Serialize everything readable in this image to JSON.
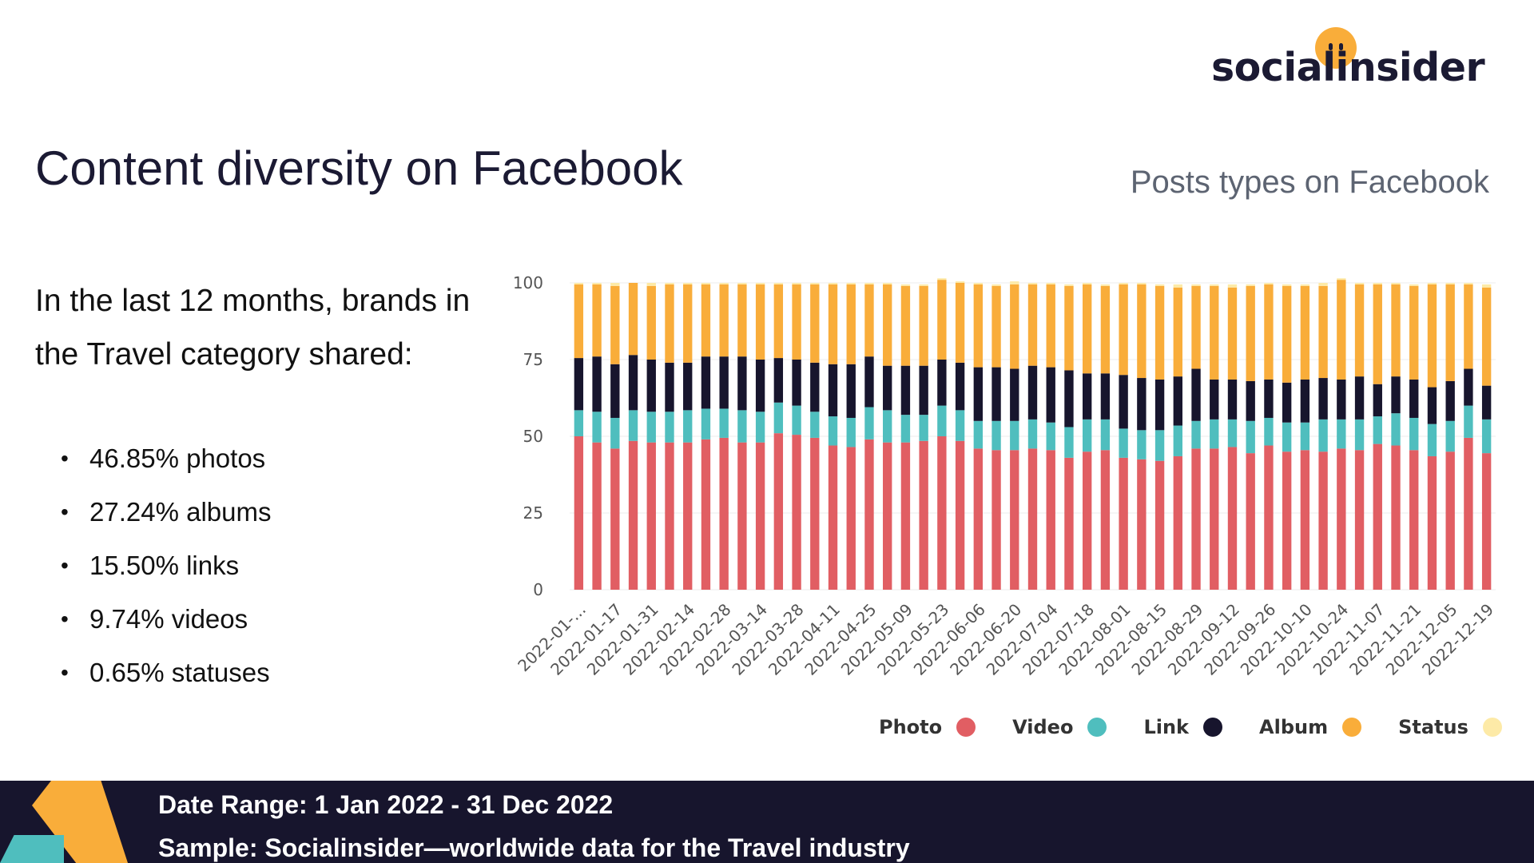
{
  "brand": {
    "logo_text": "socialinsider"
  },
  "page": {
    "title": "Content diversity on Facebook",
    "intro": "In the last 12 months, brands in the Travel category shared:",
    "stats": [
      "46.85% photos",
      "27.24% albums",
      "15.50% links",
      "9.74% videos",
      "0.65% statuses"
    ]
  },
  "footer": {
    "date_range": "Date Range: 1 Jan 2022 - 31 Dec 2022",
    "sample": "Sample: Socialinsider—worldwide data for the Travel industry"
  },
  "colors": {
    "photo": "#e15e63",
    "video": "#4fbebe",
    "link": "#17152d",
    "album": "#f9ad3a",
    "status": "#fdeaa7"
  },
  "chart_data": {
    "type": "bar",
    "stacked": true,
    "title": "Posts types on Facebook",
    "ylim": [
      0,
      100
    ],
    "yticks": [
      0,
      25,
      50,
      75,
      100
    ],
    "xtick_labels": [
      "2022-01-...",
      "2022-01-17",
      "2022-01-31",
      "2022-02-14",
      "2022-02-28",
      "2022-03-14",
      "2022-03-28",
      "2022-04-11",
      "2022-04-25",
      "2022-05-09",
      "2022-05-23",
      "2022-06-06",
      "2022-06-20",
      "2022-07-04",
      "2022-07-18",
      "2022-08-01",
      "2022-08-15",
      "2022-08-29",
      "2022-09-12",
      "2022-09-26",
      "2022-10-10",
      "2022-10-24",
      "2022-11-07",
      "2022-11-21",
      "2022-12-05",
      "2022-12-19"
    ],
    "legend": [
      "Photo",
      "Video",
      "Link",
      "Album",
      "Status"
    ],
    "series": [
      {
        "name": "Photo",
        "values": [
          50,
          48,
          46,
          48.5,
          48,
          48,
          48,
          49,
          49.5,
          48,
          48,
          51,
          50.5,
          49.5,
          47,
          46.5,
          49,
          48,
          48,
          48.5,
          50,
          48.5,
          46,
          45.5,
          45.5,
          46,
          45.5,
          43,
          45,
          45.5,
          43,
          42.5,
          42,
          43.5,
          46,
          46,
          46.5,
          44.5,
          47,
          45,
          45.5,
          45,
          46,
          45.5,
          47.5,
          47,
          45.5,
          43.5,
          45,
          49.5,
          44.5
        ]
      },
      {
        "name": "Video",
        "values": [
          8.5,
          10,
          10,
          10,
          10,
          10,
          10.5,
          10,
          9.5,
          10.5,
          10,
          10,
          9.5,
          8.5,
          9.5,
          9.5,
          10.5,
          10.5,
          9,
          8.5,
          10,
          10,
          9,
          9.5,
          9.5,
          9.5,
          9,
          10,
          10.5,
          10,
          9.5,
          9.5,
          10,
          10,
          9,
          9.5,
          9,
          10.5,
          9,
          9.5,
          9,
          10.5,
          9.5,
          10,
          9,
          10.5,
          10.5,
          10.5,
          10,
          10.5,
          11
        ]
      },
      {
        "name": "Link",
        "values": [
          17,
          18,
          17.5,
          18,
          17,
          16,
          15.5,
          17,
          17,
          17.5,
          17,
          14.5,
          15,
          16,
          17,
          17.5,
          16.5,
          14.5,
          16,
          16,
          15,
          15.5,
          17.5,
          17.5,
          17,
          17.5,
          18,
          18.5,
          15,
          15,
          17.5,
          17,
          16.5,
          16,
          17,
          13,
          13,
          13,
          12.5,
          13,
          14,
          13.5,
          13,
          14,
          10.5,
          12,
          12.5,
          12,
          13,
          12,
          11
        ]
      },
      {
        "name": "Album",
        "values": [
          24,
          23.5,
          25.5,
          23.5,
          24,
          25.5,
          25.5,
          23.5,
          23.5,
          23.5,
          24.5,
          24,
          24.5,
          25.5,
          26,
          26,
          23.5,
          26.5,
          26,
          26,
          26,
          26,
          27,
          26.5,
          27.5,
          26.5,
          27,
          27.5,
          29,
          28.5,
          29.5,
          30.5,
          30.5,
          29,
          27,
          30.5,
          30,
          31,
          31,
          31.5,
          30.5,
          30,
          32.5,
          30,
          32.5,
          30,
          30.5,
          33.5,
          31.5,
          27.5,
          32
        ]
      },
      {
        "name": "Status",
        "values": [
          0.5,
          0.5,
          1,
          0,
          1,
          0.5,
          0.5,
          0.5,
          0.5,
          0.5,
          0.5,
          0.5,
          0.5,
          0.5,
          0.5,
          0.5,
          0.5,
          0.5,
          0.5,
          0.5,
          0.5,
          0.5,
          0.5,
          0.5,
          1,
          0.5,
          0.5,
          0.5,
          0.5,
          0.5,
          0.5,
          0.5,
          0.5,
          1,
          0.5,
          0.5,
          1,
          0.5,
          0.5,
          0.5,
          0.5,
          1,
          0.5,
          0.5,
          0.5,
          0.5,
          0.5,
          0.5,
          0.5,
          0.5,
          1
        ]
      }
    ]
  }
}
